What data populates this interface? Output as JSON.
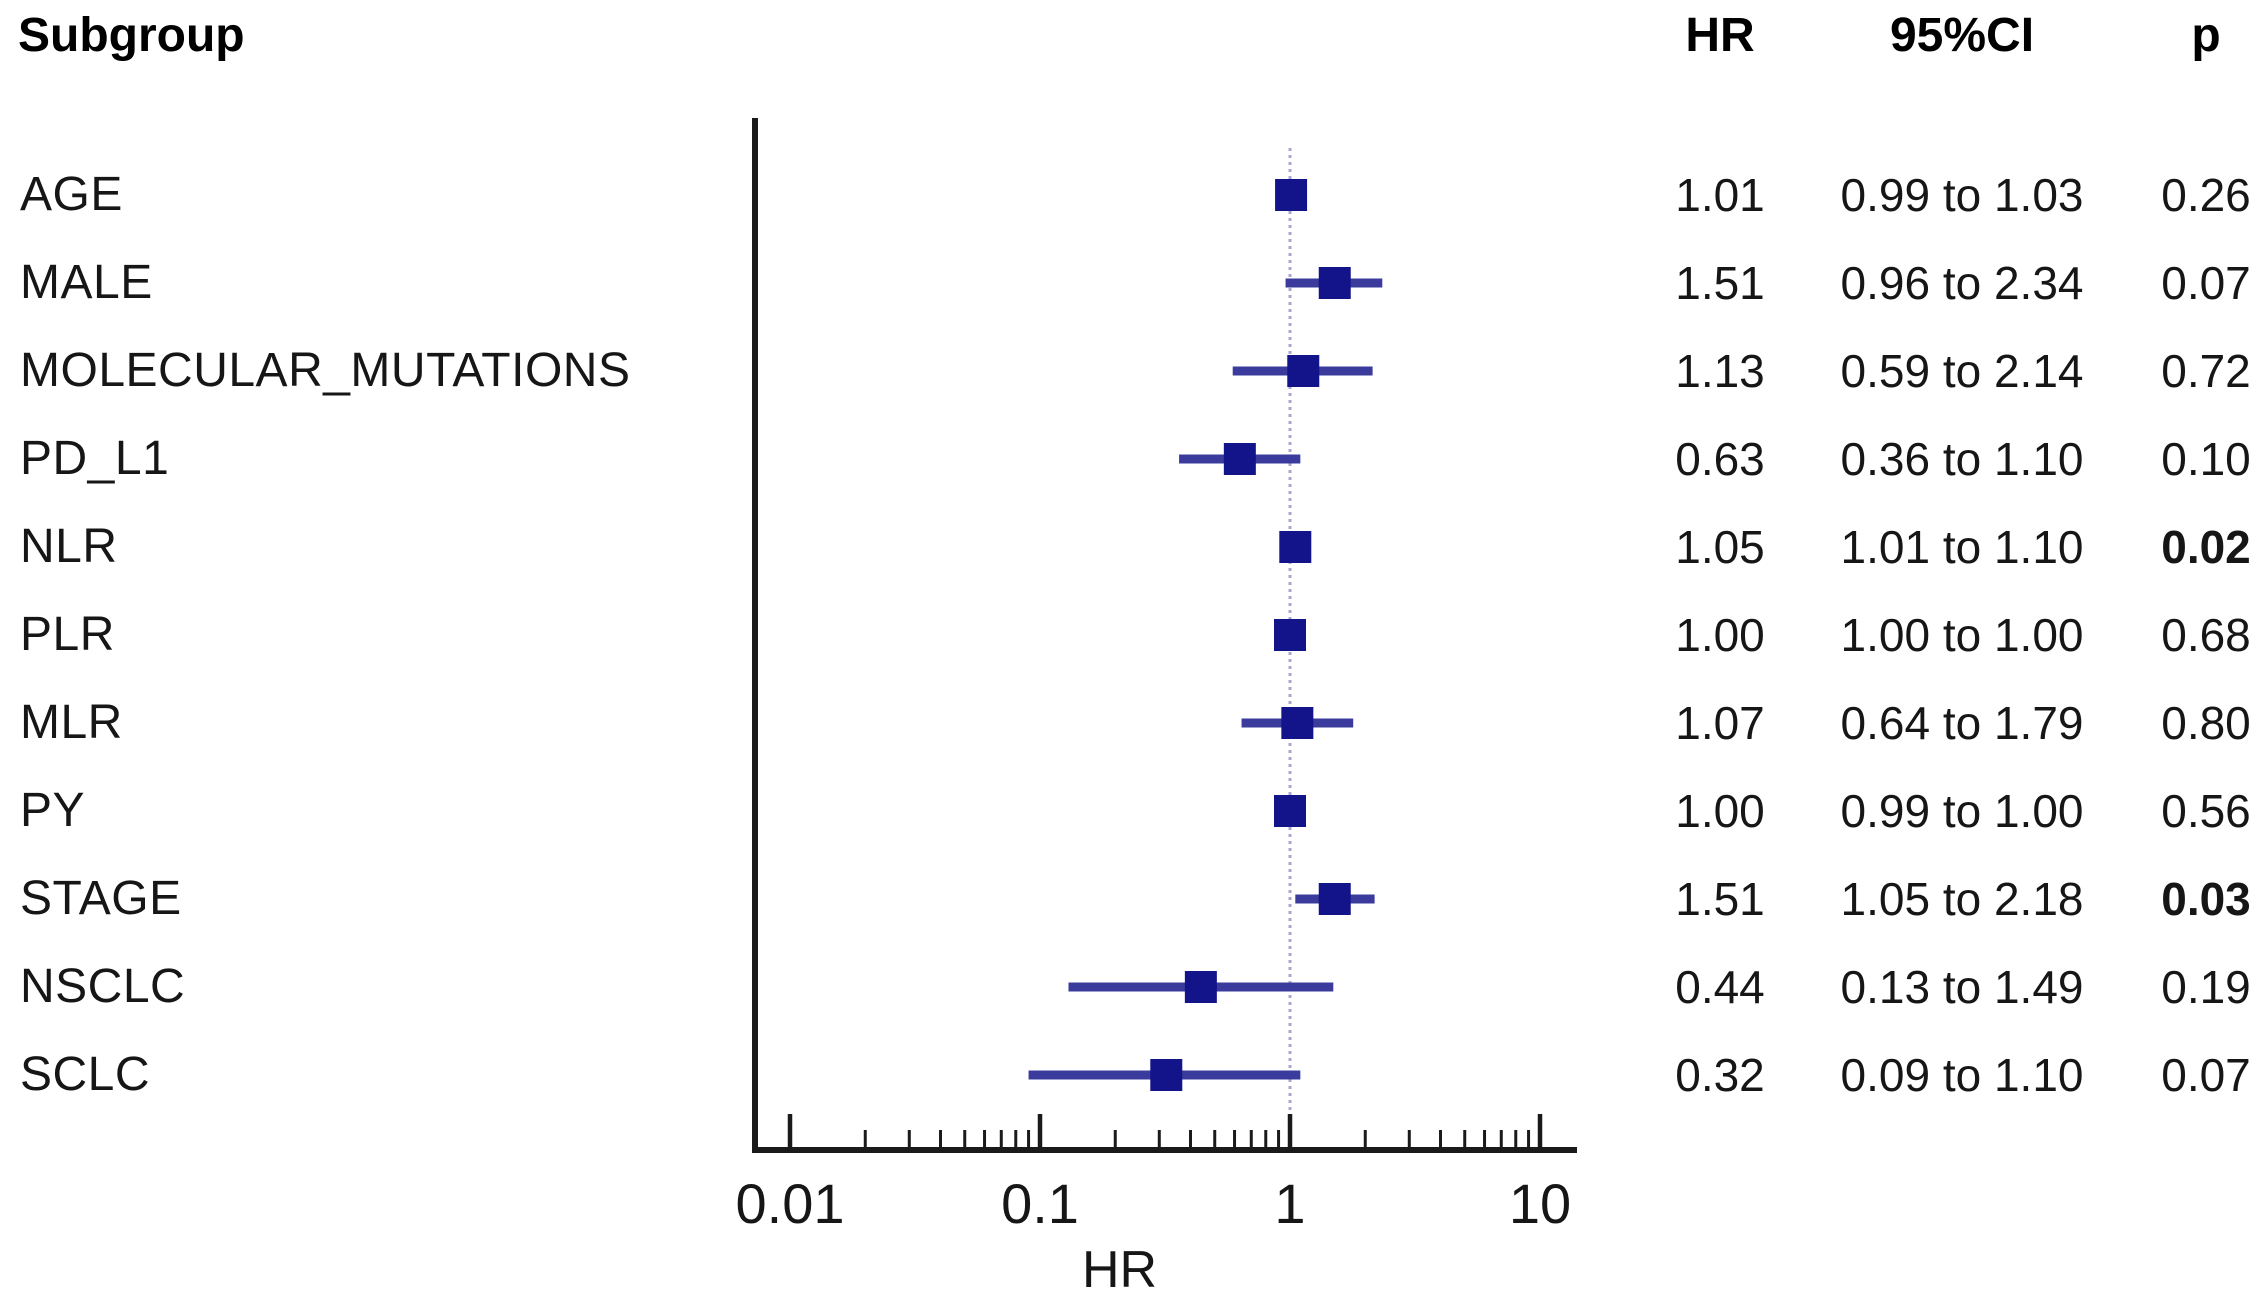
{
  "figure": {
    "subgroup_header": "Subgroup",
    "hr_header": "HR",
    "ci_header": "95%CI",
    "p_header": "p"
  },
  "colors": {
    "marker": "#14148a",
    "error_bar": "#3b3b9d",
    "ref_line": "#a7a7d1",
    "axis": "#1a1a1a",
    "text": "#161616",
    "background": "#ffffff"
  },
  "chart_data": {
    "type": "forest",
    "xscale": "log",
    "xlim": [
      0.01,
      10
    ],
    "x_ticks": [
      0.01,
      0.1,
      1,
      10
    ],
    "x_tick_labels": [
      "0.01",
      "0.1",
      "1",
      "10"
    ],
    "ref_line": 1,
    "xlabel": "HR",
    "grid": false,
    "columns": [
      "Subgroup",
      "HR",
      "95%CI",
      "p"
    ],
    "rows": [
      {
        "label": "AGE",
        "hr": 1.01,
        "ci_low": 0.99,
        "ci_high": 1.03,
        "hr_text": "1.01",
        "ci_text": "0.99 to 1.03",
        "p_text": "0.26",
        "p_bold": false
      },
      {
        "label": "MALE",
        "hr": 1.51,
        "ci_low": 0.96,
        "ci_high": 2.34,
        "hr_text": "1.51",
        "ci_text": "0.96 to 2.34",
        "p_text": "0.07",
        "p_bold": false
      },
      {
        "label": "MOLECULAR_MUTATIONS",
        "hr": 1.13,
        "ci_low": 0.59,
        "ci_high": 2.14,
        "hr_text": "1.13",
        "ci_text": "0.59 to 2.14",
        "p_text": "0.72",
        "p_bold": false
      },
      {
        "label": "PD_L1",
        "hr": 0.63,
        "ci_low": 0.36,
        "ci_high": 1.1,
        "hr_text": "0.63",
        "ci_text": "0.36 to 1.10",
        "p_text": "0.10",
        "p_bold": false
      },
      {
        "label": "NLR",
        "hr": 1.05,
        "ci_low": 1.01,
        "ci_high": 1.1,
        "hr_text": "1.05",
        "ci_text": "1.01 to 1.10",
        "p_text": "0.02",
        "p_bold": true
      },
      {
        "label": "PLR",
        "hr": 1.0,
        "ci_low": 1.0,
        "ci_high": 1.0,
        "hr_text": "1.00",
        "ci_text": "1.00 to 1.00",
        "p_text": "0.68",
        "p_bold": false
      },
      {
        "label": "MLR",
        "hr": 1.07,
        "ci_low": 0.64,
        "ci_high": 1.79,
        "hr_text": "1.07",
        "ci_text": "0.64 to 1.79",
        "p_text": "0.80",
        "p_bold": false
      },
      {
        "label": "PY",
        "hr": 1.0,
        "ci_low": 0.99,
        "ci_high": 1.0,
        "hr_text": "1.00",
        "ci_text": "0.99 to 1.00",
        "p_text": "0.56",
        "p_bold": false
      },
      {
        "label": "STAGE",
        "hr": 1.51,
        "ci_low": 1.05,
        "ci_high": 2.18,
        "hr_text": "1.51",
        "ci_text": "1.05 to 2.18",
        "p_text": "0.03",
        "p_bold": true
      },
      {
        "label": "NSCLC",
        "hr": 0.44,
        "ci_low": 0.13,
        "ci_high": 1.49,
        "hr_text": "0.44",
        "ci_text": "0.13 to 1.49",
        "p_text": "0.19",
        "p_bold": false
      },
      {
        "label": "SCLC",
        "hr": 0.32,
        "ci_low": 0.09,
        "ci_high": 1.1,
        "hr_text": "0.32",
        "ci_text": "0.09 to 1.10",
        "p_text": "0.07",
        "p_bold": false
      }
    ]
  }
}
